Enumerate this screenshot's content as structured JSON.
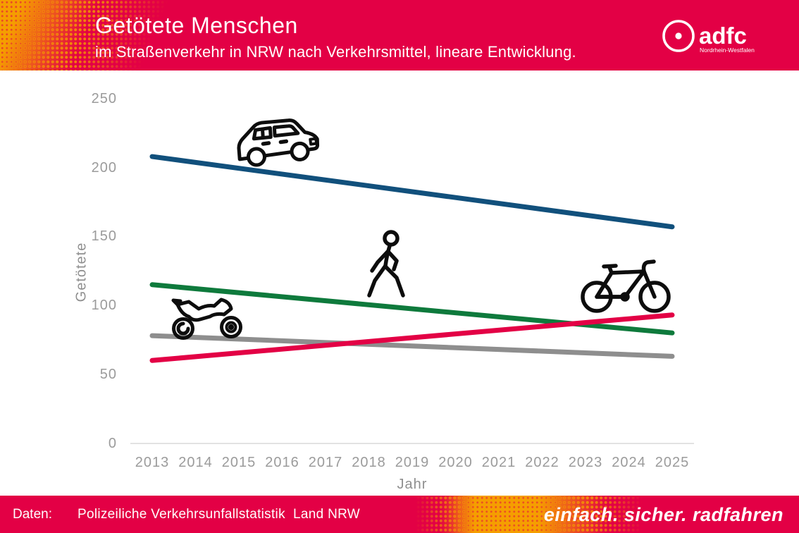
{
  "header": {
    "title": "Getötete Menschen",
    "subtitle": "im Straßenverkehr in NRW nach Verkehrsmittel, lineare Entwicklung.",
    "logo_name": "adfc",
    "logo_region": "Nordrhein-Westfalen"
  },
  "colors": {
    "brand_red": "#e30045",
    "brand_orange": "#f59e00",
    "car_line": "#11507c",
    "pedestrian_line": "#0e7a3c",
    "motorcycle_line": "#8e8e8e",
    "bicycle_line": "#e30045",
    "tick_gray": "#9b9b9b",
    "axis_gray": "#d9d9d9"
  },
  "chart_data": {
    "type": "line",
    "title": "Getötete Menschen im Straßenverkehr in NRW nach Verkehrsmittel, lineare Entwicklung",
    "xlabel": "Jahr",
    "ylabel": "Getötete",
    "xlim": [
      2013,
      2025
    ],
    "ylim": [
      0,
      250
    ],
    "xticks": [
      2013,
      2014,
      2015,
      2016,
      2017,
      2018,
      2019,
      2020,
      2021,
      2022,
      2023,
      2024,
      2025
    ],
    "yticks": [
      0,
      50,
      100,
      150,
      200,
      250
    ],
    "grid": false,
    "legend": "icons drawn next to lines",
    "series": [
      {
        "name": "car",
        "icon": "car-icon",
        "color": "#11507c",
        "x": [
          2013,
          2025
        ],
        "values": [
          208,
          157
        ]
      },
      {
        "name": "pedestrian",
        "icon": "pedestrian-icon",
        "color": "#0e7a3c",
        "x": [
          2013,
          2025
        ],
        "values": [
          115,
          80
        ]
      },
      {
        "name": "motorcycle",
        "icon": "motorcycle-icon",
        "color": "#8e8e8e",
        "x": [
          2013,
          2025
        ],
        "values": [
          78,
          63
        ]
      },
      {
        "name": "bicycle",
        "icon": "bicycle-icon",
        "color": "#e30045",
        "x": [
          2013,
          2025
        ],
        "values": [
          60,
          93
        ]
      }
    ]
  },
  "footer": {
    "label": "Daten:",
    "source": "Polizeiliche Verkehrsunfallstatistik  Land NRW",
    "slogan": "einfach. sicher. radfahren"
  }
}
